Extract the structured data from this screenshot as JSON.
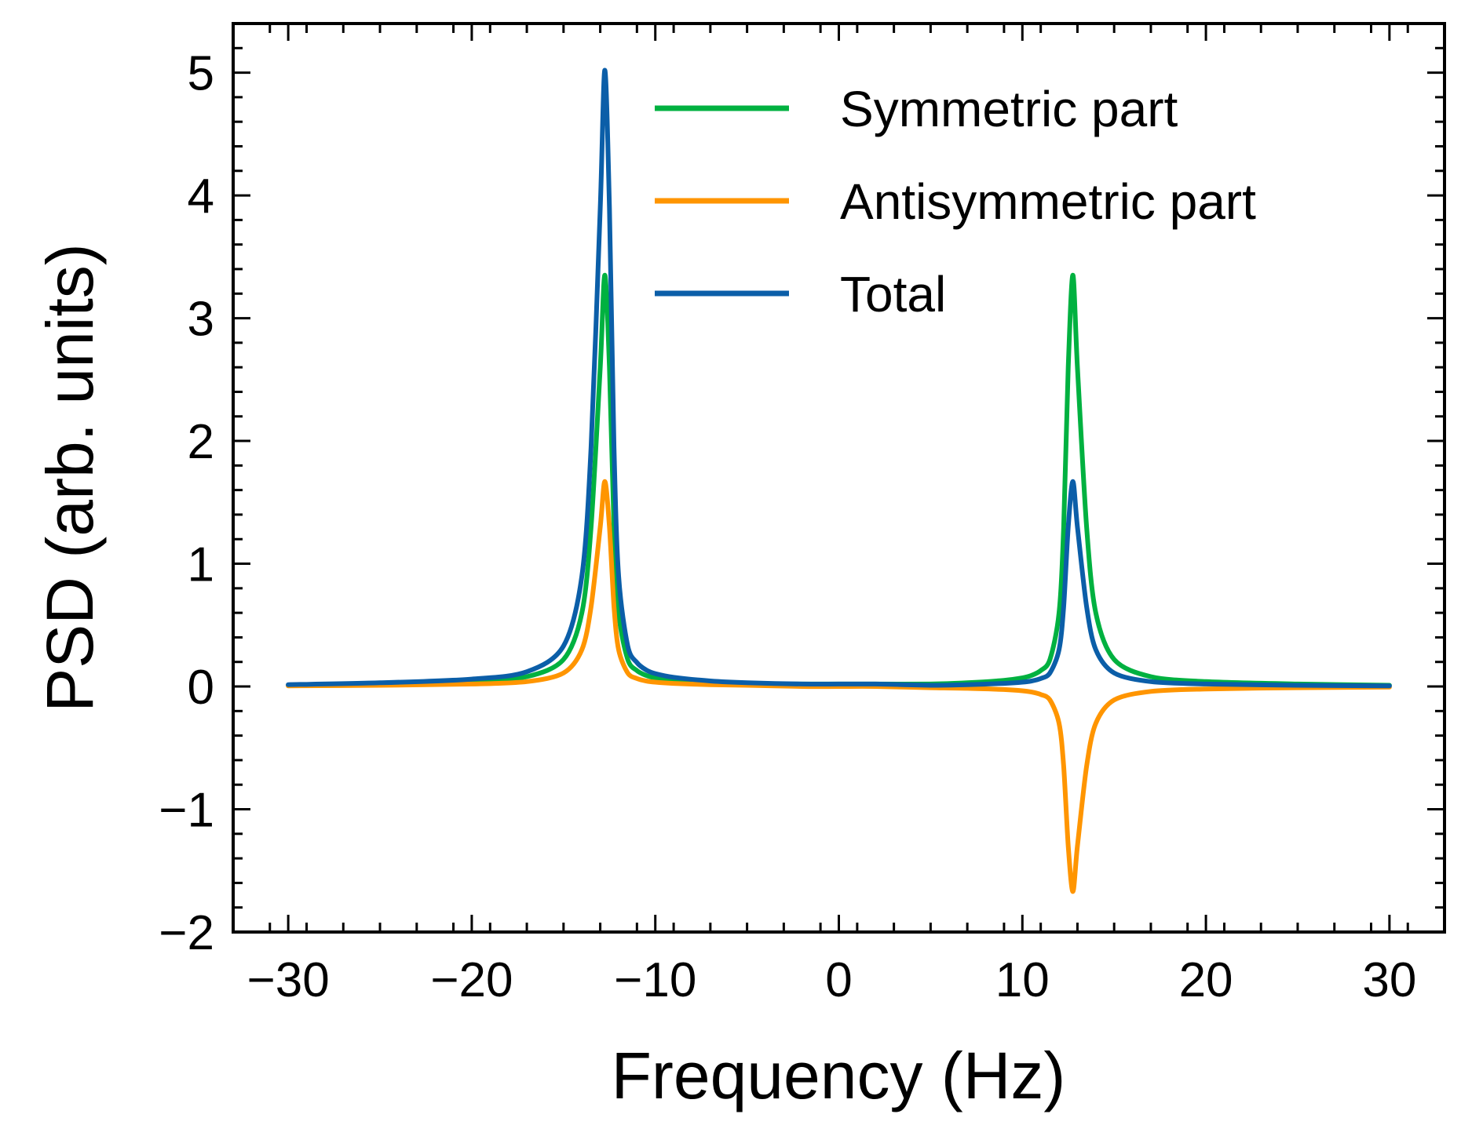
{
  "chart_data": {
    "type": "line",
    "title": "",
    "xlabel": "Frequency (Hz)",
    "ylabel": "PSD (arb. units)",
    "xlim": [
      -33,
      33
    ],
    "ylim": [
      -2,
      5.4
    ],
    "x_ticks": [
      {
        "value": -30,
        "label": "−30"
      },
      {
        "value": -20,
        "label": "−20"
      },
      {
        "value": -10,
        "label": "−10"
      },
      {
        "value": 0,
        "label": "0"
      },
      {
        "value": 10,
        "label": "10"
      },
      {
        "value": 20,
        "label": "20"
      },
      {
        "value": 30,
        "label": "30"
      }
    ],
    "y_ticks": [
      {
        "value": -2,
        "label": "−2"
      },
      {
        "value": -1,
        "label": "−1"
      },
      {
        "value": 0,
        "label": "0"
      },
      {
        "value": 1,
        "label": "1"
      },
      {
        "value": 2,
        "label": "2"
      },
      {
        "value": 3,
        "label": "3"
      },
      {
        "value": 4,
        "label": "4"
      },
      {
        "value": 5,
        "label": "5"
      }
    ],
    "x_minor_step": 2,
    "y_minor_step": 0.2,
    "grid": false,
    "legend_position": "top-right",
    "series": [
      {
        "name": "Symmetric part",
        "color": "#00b140",
        "x": [
          -30,
          -25,
          -20,
          -17,
          -15,
          -14,
          -13.5,
          -13,
          -12.75,
          -12.5,
          -12.25,
          -12,
          -11.5,
          -11,
          -10.5,
          -10,
          -9,
          -7,
          -5,
          -2,
          0,
          2,
          5,
          7,
          9,
          10,
          10.5,
          11,
          11.5,
          12,
          12.25,
          12.5,
          12.75,
          13,
          13.5,
          14,
          15,
          17,
          20,
          25,
          30
        ],
        "y": [
          0.01,
          0.02,
          0.04,
          0.08,
          0.22,
          0.6,
          1.3,
          2.6,
          3.35,
          2.6,
          1.3,
          0.6,
          0.22,
          0.13,
          0.09,
          0.07,
          0.05,
          0.03,
          0.02,
          0.02,
          0.02,
          0.02,
          0.02,
          0.03,
          0.05,
          0.07,
          0.09,
          0.13,
          0.22,
          0.6,
          1.3,
          2.6,
          3.35,
          2.6,
          1.3,
          0.6,
          0.22,
          0.08,
          0.04,
          0.02,
          0.01
        ]
      },
      {
        "name": "Antisymmetric part",
        "color": "#ff9500",
        "x": [
          -30,
          -25,
          -20,
          -17,
          -15,
          -14,
          -13.5,
          -13,
          -12.75,
          -12.5,
          -12.25,
          -12,
          -11.5,
          -11,
          -10.5,
          -10,
          -9,
          -7,
          -5,
          -2,
          0,
          2,
          5,
          7,
          9,
          10,
          10.5,
          11,
          11.5,
          12,
          12.25,
          12.5,
          12.75,
          13,
          13.5,
          14,
          15,
          17,
          20,
          25,
          30
        ],
        "y": [
          0.005,
          0.01,
          0.02,
          0.04,
          0.11,
          0.3,
          0.65,
          1.3,
          1.67,
          1.3,
          0.65,
          0.3,
          0.11,
          0.065,
          0.045,
          0.035,
          0.025,
          0.015,
          0.01,
          0.0,
          0.0,
          0.0,
          -0.01,
          -0.015,
          -0.025,
          -0.035,
          -0.045,
          -0.065,
          -0.11,
          -0.3,
          -0.65,
          -1.3,
          -1.67,
          -1.3,
          -0.65,
          -0.3,
          -0.11,
          -0.04,
          -0.02,
          -0.01,
          -0.005
        ]
      },
      {
        "name": "Total",
        "color": "#0b5ea8",
        "x": [
          -30,
          -25,
          -20,
          -17,
          -15,
          -14,
          -13.5,
          -13,
          -12.75,
          -12.5,
          -12.25,
          -12,
          -11.5,
          -11,
          -10.5,
          -10,
          -9,
          -7,
          -5,
          -2,
          0,
          2,
          5,
          7,
          9,
          10,
          10.5,
          11,
          11.5,
          12,
          12.25,
          12.5,
          12.75,
          13,
          13.5,
          14,
          15,
          17,
          20,
          25,
          30
        ],
        "y": [
          0.015,
          0.03,
          0.06,
          0.12,
          0.33,
          0.9,
          1.95,
          3.9,
          5.02,
          3.9,
          1.95,
          0.9,
          0.33,
          0.195,
          0.135,
          0.105,
          0.075,
          0.045,
          0.03,
          0.02,
          0.02,
          0.02,
          0.01,
          0.015,
          0.025,
          0.035,
          0.045,
          0.065,
          0.11,
          0.3,
          0.65,
          1.3,
          1.67,
          1.3,
          0.65,
          0.3,
          0.11,
          0.04,
          0.02,
          0.01,
          0.005
        ]
      }
    ]
  }
}
